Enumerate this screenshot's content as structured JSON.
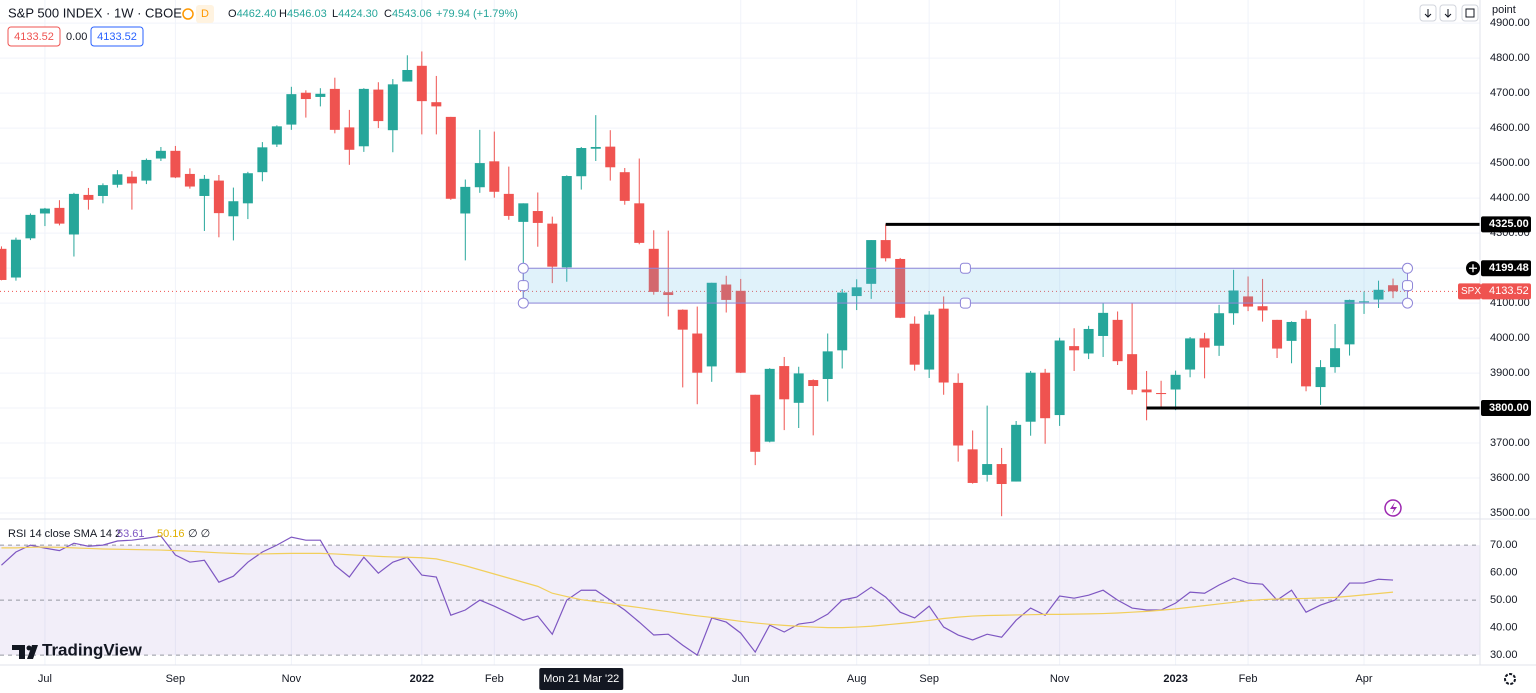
{
  "header": {
    "symbol": "S&P 500 INDEX · 1W · CBOE",
    "badge": "D",
    "ohlc_labels": [
      "O",
      "H",
      "L",
      "C"
    ],
    "ohlc_values": [
      "4462.40",
      "4546.03",
      "4424.30",
      "4543.06"
    ],
    "change": "+79.94 (+1.79%)",
    "boxes": [
      "4133.52",
      "0.00",
      "4133.52"
    ]
  },
  "branding": "TradingView",
  "chart_data": {
    "type": "candlestick",
    "up_color": "#26a69a",
    "down_color": "#ef5350",
    "y_unit": "point",
    "grid": true,
    "ohlc": [
      [
        4255,
        4262,
        4165,
        4166
      ],
      [
        4173,
        4287,
        4164,
        4281
      ],
      [
        4285,
        4356,
        4280,
        4352
      ],
      [
        4356,
        4372,
        4320,
        4370
      ],
      [
        4372,
        4394,
        4322,
        4327
      ],
      [
        4296,
        4415,
        4233,
        4412
      ],
      [
        4409,
        4429,
        4367,
        4395
      ],
      [
        4406,
        4442,
        4385,
        4437
      ],
      [
        4438,
        4480,
        4430,
        4468
      ],
      [
        4461,
        4477,
        4367,
        4442
      ],
      [
        4450,
        4513,
        4440,
        4509
      ],
      [
        4513,
        4546,
        4506,
        4535
      ],
      [
        4535,
        4549,
        4457,
        4459
      ],
      [
        4469,
        4485,
        4427,
        4433
      ],
      [
        4406,
        4466,
        4306,
        4455
      ],
      [
        4450,
        4466,
        4288,
        4357
      ],
      [
        4348,
        4430,
        4279,
        4391
      ],
      [
        4385,
        4475,
        4340,
        4471
      ],
      [
        4474,
        4560,
        4448,
        4545
      ],
      [
        4553,
        4608,
        4546,
        4605
      ],
      [
        4610,
        4718,
        4595,
        4697
      ],
      [
        4701,
        4708,
        4630,
        4683
      ],
      [
        4689,
        4714,
        4662,
        4698
      ],
      [
        4712,
        4744,
        4585,
        4595
      ],
      [
        4602,
        4652,
        4495,
        4538
      ],
      [
        4548,
        4714,
        4532,
        4712
      ],
      [
        4710,
        4731,
        4600,
        4620
      ],
      [
        4594,
        4740,
        4531,
        4725
      ],
      [
        4733,
        4808,
        4733,
        4766
      ],
      [
        4778,
        4819,
        4582,
        4677
      ],
      [
        4674,
        4749,
        4582,
        4662
      ],
      [
        4632,
        4632,
        4395,
        4398
      ],
      [
        4356,
        4453,
        4222,
        4432
      ],
      [
        4431,
        4595,
        4415,
        4500
      ],
      [
        4505,
        4590,
        4401,
        4418
      ],
      [
        4412,
        4490,
        4338,
        4349
      ],
      [
        4332,
        4385,
        4114,
        4385
      ],
      [
        4363,
        4416,
        4261,
        4329
      ],
      [
        4327,
        4347,
        4157,
        4204
      ],
      [
        4202,
        4465,
        4161,
        4463
      ],
      [
        4462.4,
        4546.03,
        4424.3,
        4543.06
      ],
      [
        4541,
        4637,
        4506,
        4546
      ],
      [
        4547,
        4594,
        4450,
        4488
      ],
      [
        4474,
        4486,
        4381,
        4392
      ],
      [
        4385,
        4513,
        4268,
        4272
      ],
      [
        4255,
        4308,
        4124,
        4132
      ],
      [
        4131,
        4307,
        4062,
        4123
      ],
      [
        4081,
        4082,
        3859,
        4024
      ],
      [
        4013,
        4090,
        3811,
        3901
      ],
      [
        3919,
        4158,
        3875,
        4158
      ],
      [
        4153,
        4178,
        4073,
        4109
      ],
      [
        4135,
        4169,
        3900,
        3901
      ],
      [
        3838,
        3838,
        3637,
        3675
      ],
      [
        3704,
        3914,
        3702,
        3912
      ],
      [
        3920,
        3946,
        3737,
        3825
      ],
      [
        3815,
        3918,
        3743,
        3899
      ],
      [
        3880,
        3882,
        3722,
        3863
      ],
      [
        3883,
        4013,
        3819,
        3962
      ],
      [
        3965,
        4140,
        3913,
        4130
      ],
      [
        4120,
        4168,
        4080,
        4145
      ],
      [
        4155,
        4280,
        4112,
        4280
      ],
      [
        4280,
        4325,
        4219,
        4228
      ],
      [
        4226,
        4229,
        4057,
        4058
      ],
      [
        4041,
        4062,
        3907,
        3924
      ],
      [
        3910,
        4077,
        3886,
        4067
      ],
      [
        4084,
        4119,
        3838,
        3873
      ],
      [
        3872,
        3899,
        3647,
        3693
      ],
      [
        3682,
        3736,
        3584,
        3586
      ],
      [
        3609,
        3807,
        3590,
        3640
      ],
      [
        3640,
        3686,
        3491,
        3583
      ],
      [
        3590,
        3763,
        3590,
        3752
      ],
      [
        3761,
        3906,
        3721,
        3901
      ],
      [
        3901,
        3912,
        3698,
        3771
      ],
      [
        3780,
        4001,
        3749,
        3993
      ],
      [
        3977,
        4028,
        3906,
        3965
      ],
      [
        3956,
        4035,
        3940,
        4026
      ],
      [
        4006,
        4100,
        3946,
        4072
      ],
      [
        4052,
        4076,
        3923,
        3934
      ],
      [
        3954,
        4101,
        3839,
        3852
      ],
      [
        3853,
        3906,
        3765,
        3845
      ],
      [
        3843,
        3878,
        3800,
        3840
      ],
      [
        3853,
        3907,
        3794,
        3895
      ],
      [
        3910,
        4003,
        3888,
        3999
      ],
      [
        3999,
        4015,
        3885,
        3973
      ],
      [
        3978,
        4095,
        3949,
        4071
      ],
      [
        4071,
        4195,
        4038,
        4136
      ],
      [
        4119,
        4176,
        4077,
        4090
      ],
      [
        4091,
        4169,
        4047,
        4079
      ],
      [
        4052,
        4052,
        3943,
        3970
      ],
      [
        3992,
        4048,
        3928,
        4046
      ],
      [
        4055,
        4079,
        3848,
        3862
      ],
      [
        3860,
        3937,
        3809,
        3917
      ],
      [
        3917,
        4040,
        3901,
        3971
      ],
      [
        3982,
        4110,
        3950,
        4109
      ],
      [
        4102,
        4133,
        4069,
        4105
      ],
      [
        4110,
        4164,
        4086,
        4138
      ],
      [
        4151,
        4170,
        4114,
        4133.52
      ]
    ],
    "xlim": [
      -0.1,
      102
    ],
    "xticks": [
      {
        "value": 3,
        "label": "Jul"
      },
      {
        "value": 12,
        "label": "Sep"
      },
      {
        "value": 20,
        "label": "Nov"
      },
      {
        "value": 29,
        "label": "2022"
      },
      {
        "value": 34,
        "label": "Feb"
      },
      {
        "value": 51,
        "label": "Jun"
      },
      {
        "value": 59,
        "label": "Aug"
      },
      {
        "value": 64,
        "label": "Sep"
      },
      {
        "value": 73,
        "label": "Nov"
      },
      {
        "value": 81,
        "label": "2023"
      },
      {
        "value": 86,
        "label": "Feb"
      },
      {
        "value": 94,
        "label": "Apr"
      }
    ],
    "crosshair": {
      "value": 40,
      "label": "Mon 21 Mar '22"
    },
    "ylim": [
      3483,
      4966
    ],
    "yticks": [
      {
        "value": 3500,
        "label": "3500.00"
      },
      {
        "value": 3600,
        "label": "3600.00"
      },
      {
        "value": 3700,
        "label": "3700.00"
      },
      {
        "value": 3800,
        "label": "3800.00"
      },
      {
        "value": 3900,
        "label": "3900.00"
      },
      {
        "value": 4000,
        "label": "4000.00"
      },
      {
        "value": 4100,
        "label": "4100.00"
      },
      {
        "value": 4200,
        "label": "4200.00"
      },
      {
        "value": 4300,
        "label": "4300.00"
      },
      {
        "value": 4400,
        "label": "4400.00"
      },
      {
        "value": 4500,
        "label": "4500.00"
      },
      {
        "value": 4600,
        "label": "4600.00"
      },
      {
        "value": 4700,
        "label": "4700.00"
      },
      {
        "value": 4800,
        "label": "4800.00"
      },
      {
        "value": 4900,
        "label": "4900.00"
      }
    ],
    "levels": [
      {
        "value": 4325,
        "label": "4325.00",
        "start": 61
      },
      {
        "value": 3800,
        "label": "3800.00",
        "start": 79
      }
    ],
    "range_box": {
      "low": 4100,
      "high": {
        "value": 4199.48,
        "label": "4199.48"
      },
      "start": 36,
      "end": 97
    },
    "last": {
      "value": 4133.52,
      "label": "4133.52",
      "name": "SPX"
    }
  },
  "indicator": {
    "type": "line",
    "title": "RSI 14 close SMA 14 2",
    "flags": "∅ ∅",
    "ylim": [
      26.4,
      79.5
    ],
    "yticks": [
      {
        "value": 30,
        "label": "30.00"
      },
      {
        "value": 40,
        "label": "40.00"
      },
      {
        "value": 50,
        "label": "50.00"
      },
      {
        "value": 60,
        "label": "60.00"
      },
      {
        "value": 70,
        "label": "70.00"
      }
    ],
    "band": [
      30,
      70
    ],
    "midline": 50,
    "series": [
      {
        "color": "#7e57c2",
        "values": [
          62.7,
          67.5,
          70,
          68.9,
          68,
          70.7,
          69.6,
          70,
          71.5,
          71.8,
          72.5,
          73.3,
          66.4,
          63.8,
          64.5,
          56.5,
          58.7,
          63.8,
          67.5,
          70,
          72.9,
          71.8,
          71.8,
          62.7,
          58.4,
          65.6,
          59.8,
          63.8,
          65.6,
          59.1,
          58.4,
          44.5,
          46.4,
          50,
          47.8,
          45.3,
          42.7,
          44.2,
          37.6,
          50,
          53.61,
          53.6,
          50,
          46.4,
          42,
          37.3,
          37.6,
          33.6,
          30,
          43.5,
          42,
          38,
          31.1,
          40.9,
          38.4,
          41.3,
          42,
          44.9,
          50,
          51.1,
          54.7,
          51.1,
          45.6,
          43.5,
          47.8,
          40.2,
          37.3,
          35.5,
          37.6,
          36.5,
          42.7,
          47.1,
          44.5,
          51.5,
          50.7,
          51.8,
          53.6,
          50,
          47.1,
          46.4,
          46.4,
          48.9,
          52.9,
          52.5,
          55.5,
          58,
          56.2,
          55.8,
          50,
          53.6,
          45.6,
          48.2,
          50,
          56.2,
          56.2,
          57.6,
          57.3
        ]
      },
      {
        "color": "#f2cf5b",
        "values": [
          69,
          69,
          69.2,
          69.3,
          69.2,
          69,
          68.8,
          68.6,
          68.5,
          68.4,
          68.3,
          68.2,
          68,
          67.8,
          67.5,
          67.2,
          67,
          66.8,
          66.8,
          66.9,
          67,
          67,
          67,
          66.8,
          66.5,
          66.2,
          65.9,
          65.7,
          65.6,
          65.4,
          65,
          63.8,
          62.5,
          61,
          59.5,
          58,
          56.5,
          55,
          52.5,
          51.3,
          50.16,
          49.5,
          48.8,
          48,
          47.3,
          46.5,
          45.8,
          45,
          44.3,
          43.7,
          43,
          42.3,
          41.7,
          41.2,
          40.8,
          40.5,
          40.2,
          40,
          40,
          40.2,
          40.5,
          41,
          41.5,
          42,
          42.6,
          43.3,
          43.8,
          44.2,
          44.4,
          44.5,
          44.6,
          44.7,
          44.8,
          44.8,
          44.9,
          45,
          45.1,
          45.3,
          45.6,
          45.9,
          46.3,
          46.8,
          47.4,
          48,
          48.6,
          49.2,
          49.8,
          50.2,
          50.4,
          50.5,
          50.6,
          50.8,
          51,
          51.4,
          51.9,
          52.4,
          52.9
        ]
      }
    ]
  }
}
